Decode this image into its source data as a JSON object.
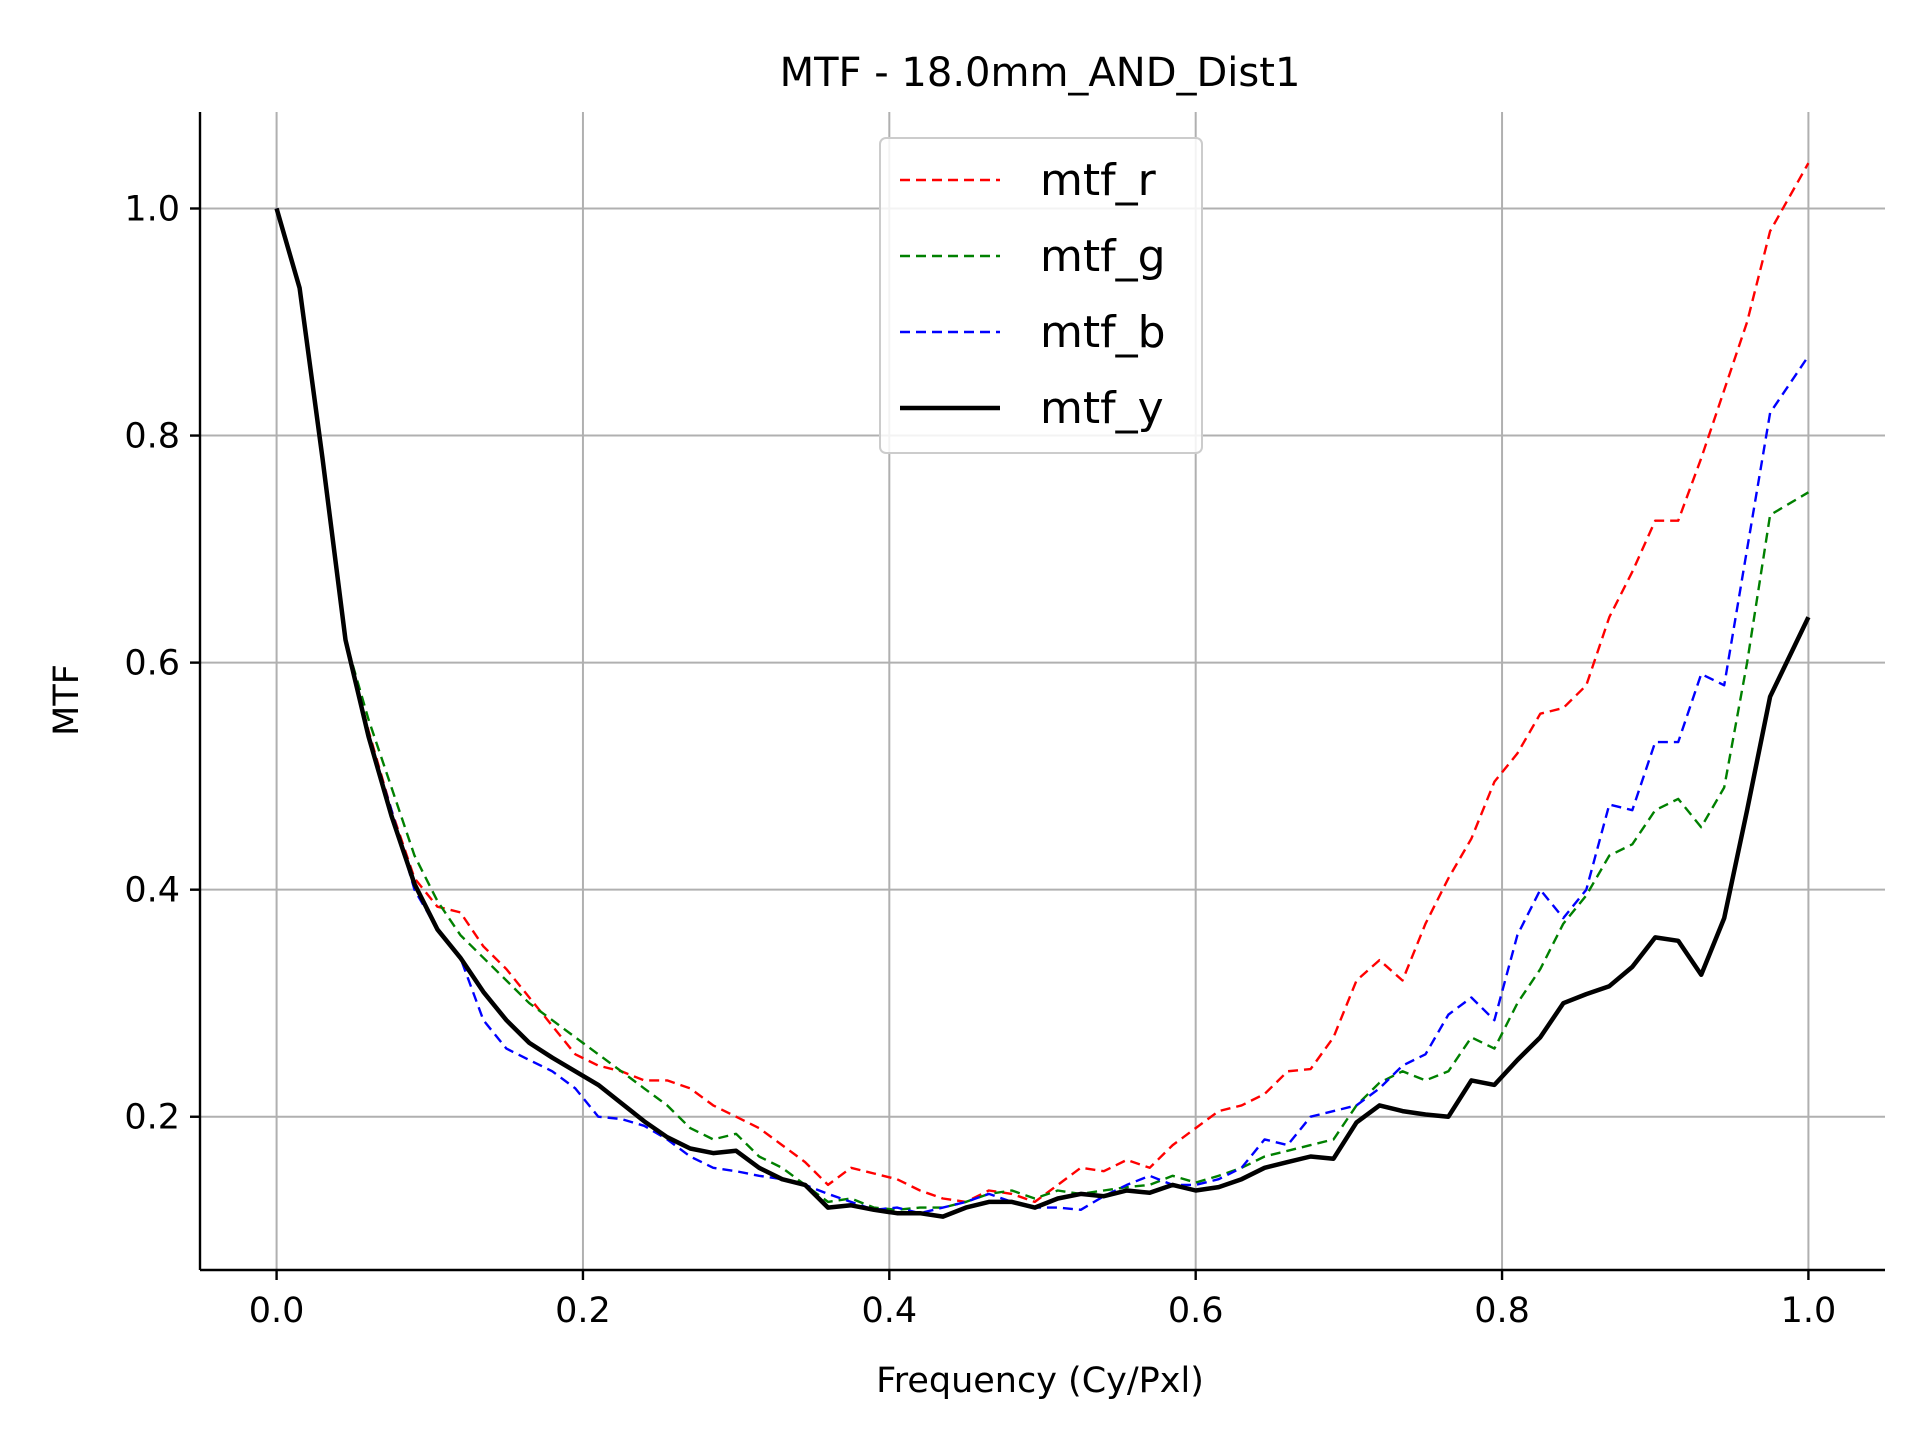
{
  "chart_data": {
    "type": "line",
    "title": "MTF - 18.0mm_AND_Dist1",
    "xlabel": "Frequency (Cy/Pxl)",
    "ylabel": "MTF",
    "xlim": [
      -0.05,
      1.05
    ],
    "ylim": [
      0.065,
      1.085
    ],
    "grid": true,
    "legend_placement": "top-center",
    "x_ticks": [
      "0.0",
      "0.2",
      "0.4",
      "0.6",
      "0.8",
      "1.0"
    ],
    "y_ticks": [
      "0.2",
      "0.4",
      "0.6",
      "0.8",
      "1.0"
    ],
    "x": [
      0.0,
      0.015,
      0.03,
      0.045,
      0.06,
      0.075,
      0.09,
      0.105,
      0.12,
      0.135,
      0.15,
      0.165,
      0.18,
      0.195,
      0.21,
      0.225,
      0.24,
      0.255,
      0.27,
      0.285,
      0.3,
      0.315,
      0.33,
      0.345,
      0.36,
      0.375,
      0.39,
      0.405,
      0.42,
      0.435,
      0.45,
      0.465,
      0.48,
      0.495,
      0.51,
      0.525,
      0.54,
      0.555,
      0.57,
      0.585,
      0.6,
      0.615,
      0.63,
      0.645,
      0.66,
      0.675,
      0.69,
      0.705,
      0.72,
      0.735,
      0.75,
      0.765,
      0.78,
      0.795,
      0.81,
      0.825,
      0.84,
      0.855,
      0.87,
      0.885,
      0.9,
      0.915,
      0.93,
      0.945,
      0.96,
      0.975,
      1.0
    ],
    "series": [
      {
        "name": "mtf_r",
        "color": "#ff0000",
        "style": "dashed",
        "values": [
          1.0,
          0.93,
          0.78,
          0.62,
          0.54,
          0.47,
          0.41,
          0.385,
          0.38,
          0.35,
          0.33,
          0.305,
          0.28,
          0.255,
          0.245,
          0.24,
          0.232,
          0.232,
          0.225,
          0.21,
          0.2,
          0.19,
          0.175,
          0.16,
          0.14,
          0.155,
          0.15,
          0.145,
          0.135,
          0.128,
          0.125,
          0.135,
          0.132,
          0.125,
          0.14,
          0.155,
          0.152,
          0.162,
          0.155,
          0.175,
          0.19,
          0.205,
          0.21,
          0.22,
          0.24,
          0.242,
          0.27,
          0.32,
          0.338,
          0.32,
          0.37,
          0.41,
          0.445,
          0.495,
          0.52,
          0.555,
          0.56,
          0.58,
          0.64,
          0.68,
          0.725,
          0.725,
          0.78,
          0.84,
          0.9,
          0.98,
          1.04
        ]
      },
      {
        "name": "mtf_g",
        "color": "#008000",
        "style": "dashed",
        "values": [
          1.0,
          0.93,
          0.78,
          0.62,
          0.55,
          0.49,
          0.43,
          0.39,
          0.36,
          0.34,
          0.32,
          0.3,
          0.285,
          0.27,
          0.255,
          0.24,
          0.225,
          0.21,
          0.19,
          0.18,
          0.185,
          0.165,
          0.155,
          0.14,
          0.125,
          0.128,
          0.12,
          0.118,
          0.12,
          0.12,
          0.125,
          0.132,
          0.135,
          0.128,
          0.135,
          0.132,
          0.135,
          0.138,
          0.14,
          0.148,
          0.142,
          0.148,
          0.155,
          0.165,
          0.17,
          0.175,
          0.18,
          0.21,
          0.23,
          0.24,
          0.232,
          0.24,
          0.27,
          0.26,
          0.3,
          0.33,
          0.37,
          0.395,
          0.43,
          0.44,
          0.47,
          0.48,
          0.455,
          0.49,
          0.6,
          0.73,
          0.75
        ]
      },
      {
        "name": "mtf_b",
        "color": "#0000ff",
        "style": "dashed",
        "values": [
          1.0,
          0.93,
          0.78,
          0.62,
          0.535,
          0.47,
          0.4,
          0.365,
          0.34,
          0.285,
          0.26,
          0.25,
          0.24,
          0.225,
          0.2,
          0.198,
          0.192,
          0.18,
          0.165,
          0.155,
          0.152,
          0.148,
          0.145,
          0.14,
          0.132,
          0.125,
          0.118,
          0.12,
          0.115,
          0.12,
          0.125,
          0.132,
          0.125,
          0.12,
          0.12,
          0.118,
          0.13,
          0.14,
          0.148,
          0.14,
          0.14,
          0.145,
          0.155,
          0.18,
          0.175,
          0.2,
          0.205,
          0.21,
          0.225,
          0.245,
          0.255,
          0.29,
          0.305,
          0.285,
          0.36,
          0.4,
          0.375,
          0.4,
          0.475,
          0.47,
          0.53,
          0.53,
          0.59,
          0.58,
          0.7,
          0.82,
          0.87
        ]
      },
      {
        "name": "mtf_y",
        "color": "#000000",
        "style": "solid",
        "values": [
          1.0,
          0.93,
          0.78,
          0.62,
          0.535,
          0.465,
          0.405,
          0.365,
          0.34,
          0.31,
          0.285,
          0.265,
          0.252,
          0.24,
          0.228,
          0.212,
          0.196,
          0.182,
          0.172,
          0.168,
          0.17,
          0.155,
          0.145,
          0.14,
          0.12,
          0.122,
          0.118,
          0.115,
          0.115,
          0.112,
          0.12,
          0.125,
          0.125,
          0.12,
          0.128,
          0.132,
          0.13,
          0.135,
          0.133,
          0.14,
          0.135,
          0.138,
          0.145,
          0.155,
          0.16,
          0.165,
          0.163,
          0.195,
          0.21,
          0.205,
          0.202,
          0.2,
          0.232,
          0.228,
          0.25,
          0.27,
          0.3,
          0.308,
          0.315,
          0.332,
          0.358,
          0.355,
          0.325,
          0.375,
          0.47,
          0.57,
          0.64
        ]
      }
    ]
  }
}
